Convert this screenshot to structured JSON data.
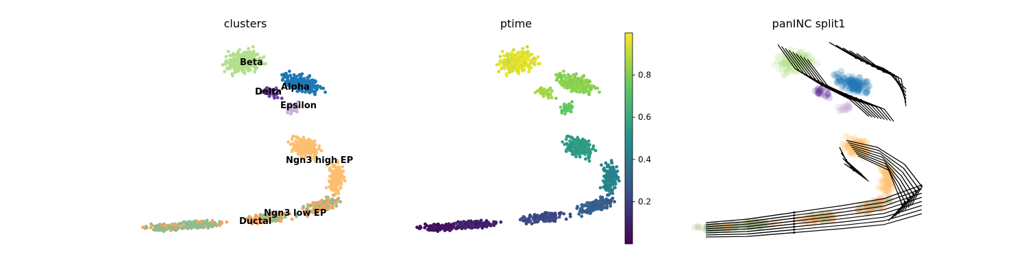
{
  "figure": {
    "panels": [
      {
        "title": "clusters"
      },
      {
        "title": "ptime"
      },
      {
        "title": "panINC split1"
      }
    ]
  },
  "chart_data": [
    {
      "type": "scatter",
      "title": "clusters",
      "xlabel": "",
      "ylabel": "",
      "embedding": "2D cell embedding, axes hidden",
      "groups": [
        {
          "name": "Beta",
          "color": "#b2df8a",
          "label_visible": true
        },
        {
          "name": "Delta",
          "color": "#6a3d9a",
          "label_visible": true
        },
        {
          "name": "Alpha",
          "color": "#1f78b4",
          "label_visible": true
        },
        {
          "name": "Epsilon",
          "color": "#cab2d6",
          "label_visible": true
        },
        {
          "name": "Ngn3 high EP",
          "color": "#fdbf6f",
          "label_visible": true
        },
        {
          "name": "Ngn3 low EP",
          "color": "#f4a460",
          "label_visible": true
        },
        {
          "name": "Ductal",
          "color": "#8fbc8f",
          "label_visible": true
        }
      ]
    },
    {
      "type": "scatter",
      "title": "ptime",
      "colormap": "viridis",
      "colorbar": {
        "range": [
          0.0,
          1.0
        ],
        "ticks": [
          {
            "value": 0.2,
            "label": "0.2"
          },
          {
            "value": 0.4,
            "label": "0.4"
          },
          {
            "value": 0.6,
            "label": "0.6"
          },
          {
            "value": 0.8,
            "label": "0.8"
          }
        ]
      },
      "trend": "low pseudotime at Ductal region, increasing through Ngn3 EP to highest at Beta region"
    },
    {
      "type": "scatter",
      "title": "panINC split1",
      "overlay": "velocity streamlines with arrowheads",
      "point_style": "faded cluster colors"
    }
  ]
}
